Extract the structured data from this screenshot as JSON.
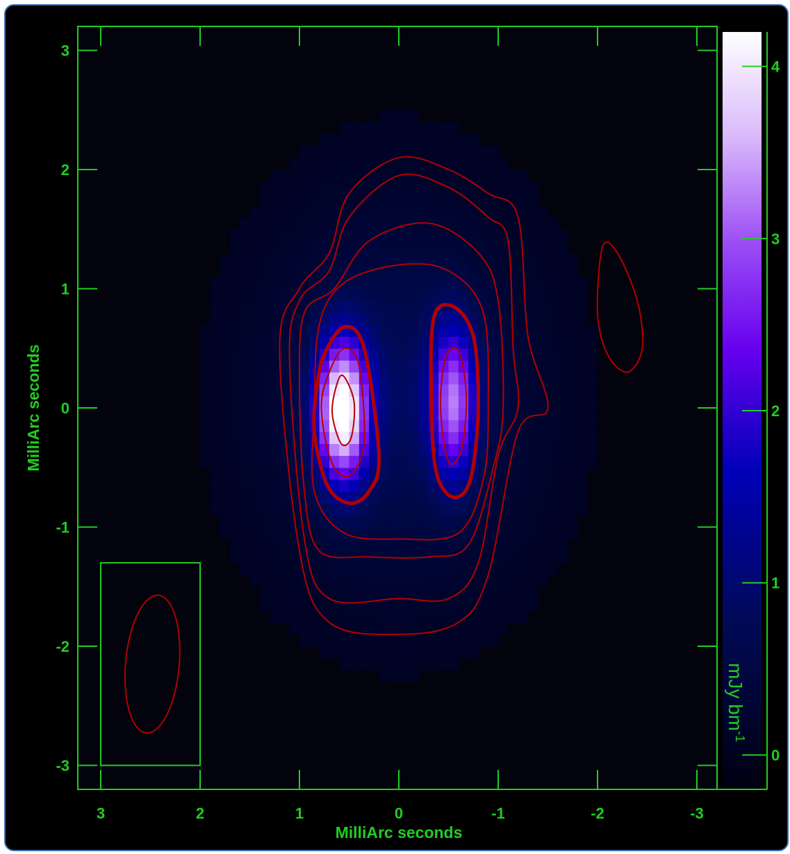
{
  "chart_data": {
    "type": "heatmap",
    "title": "",
    "xlabel": "MilliArc seconds",
    "ylabel": "MilliArc seconds",
    "xlim": [
      3.2,
      -3.4
    ],
    "ylim": [
      -3.2,
      3.2
    ],
    "x_reversed": true,
    "x_ticks": [
      3,
      2,
      1,
      0,
      -1,
      -2,
      -3
    ],
    "x_tick_labels": [
      "3",
      "2",
      "1",
      "0",
      "-1",
      "-2",
      "-3"
    ],
    "y_ticks": [
      3,
      2,
      1,
      0,
      -1,
      -2,
      -3
    ],
    "y_tick_labels": [
      "3",
      "2",
      "1",
      "0",
      "-1",
      "-2",
      "-3"
    ],
    "grid": false,
    "colorbar": {
      "label_main": "mJy bm",
      "label_sup": "-1",
      "range": [
        -0.2,
        4.2
      ],
      "ticks": [
        0,
        1,
        2,
        3,
        4
      ],
      "tick_labels": [
        "0",
        "1",
        "2",
        "3",
        "4"
      ],
      "placement": "right"
    },
    "intensity_components": [
      {
        "x": 0.57,
        "y": -0.02,
        "sigma_x": 0.19,
        "sigma_y": 0.42,
        "peak": 4.0
      },
      {
        "x": -0.55,
        "y": 0.05,
        "sigma_x": 0.17,
        "sigma_y": 0.45,
        "peak": 2.6
      },
      {
        "x": 0.0,
        "y": 0.1,
        "sigma_x": 0.9,
        "sigma_y": 1.05,
        "peak": 0.8
      }
    ],
    "contours": [
      {
        "level": "outer",
        "weight": "thin",
        "points": [
          [
            1.0,
            1.0
          ],
          [
            0.7,
            1.3
          ],
          [
            0.5,
            1.8
          ],
          [
            0.0,
            2.1
          ],
          [
            -0.5,
            2.0
          ],
          [
            -0.9,
            1.8
          ],
          [
            -1.2,
            1.6
          ],
          [
            -1.3,
            0.6
          ],
          [
            -1.5,
            0.0
          ],
          [
            -1.2,
            -0.2
          ],
          [
            -0.9,
            -1.4
          ],
          [
            -0.6,
            -1.8
          ],
          [
            0.0,
            -1.9
          ],
          [
            0.7,
            -1.8
          ],
          [
            1.0,
            -1.2
          ],
          [
            1.2,
            0.5
          ]
        ]
      },
      {
        "level": "2",
        "weight": "thin",
        "points": [
          [
            1.0,
            0.9
          ],
          [
            0.7,
            1.15
          ],
          [
            0.5,
            1.6
          ],
          [
            0.0,
            1.95
          ],
          [
            -0.5,
            1.85
          ],
          [
            -0.9,
            1.6
          ],
          [
            -1.1,
            1.4
          ],
          [
            -1.15,
            0.5
          ],
          [
            -1.2,
            0.0
          ],
          [
            -1.0,
            -0.4
          ],
          [
            -0.8,
            -1.3
          ],
          [
            -0.5,
            -1.6
          ],
          [
            0.0,
            -1.6
          ],
          [
            0.7,
            -1.6
          ],
          [
            0.95,
            -1.1
          ],
          [
            1.1,
            0.4
          ]
        ]
      },
      {
        "level": "3",
        "weight": "thin",
        "points": [
          [
            0.95,
            0.8
          ],
          [
            0.65,
            1.0
          ],
          [
            0.3,
            1.4
          ],
          [
            -0.3,
            1.55
          ],
          [
            -0.8,
            1.3
          ],
          [
            -1.0,
            0.9
          ],
          [
            -1.05,
            0.0
          ],
          [
            -0.95,
            -0.5
          ],
          [
            -0.7,
            -1.15
          ],
          [
            -0.3,
            -1.25
          ],
          [
            0.3,
            -1.25
          ],
          [
            0.8,
            -1.2
          ],
          [
            0.95,
            -0.7
          ],
          [
            1.0,
            0.2
          ]
        ]
      },
      {
        "level": "4",
        "weight": "thin",
        "points": [
          [
            0.8,
            0.7
          ],
          [
            0.55,
            1.05
          ],
          [
            0.0,
            1.2
          ],
          [
            -0.5,
            1.15
          ],
          [
            -0.85,
            0.8
          ],
          [
            -0.9,
            0.0
          ],
          [
            -0.85,
            -0.6
          ],
          [
            -0.6,
            -1.05
          ],
          [
            0.0,
            -1.1
          ],
          [
            0.55,
            -1.05
          ],
          [
            0.85,
            -0.7
          ],
          [
            0.85,
            0.0
          ]
        ]
      },
      {
        "level": "5-left",
        "weight": "thick",
        "points": [
          [
            0.75,
            0.45
          ],
          [
            0.55,
            0.68
          ],
          [
            0.35,
            0.5
          ],
          [
            0.2,
            -0.4
          ],
          [
            0.3,
            -0.7
          ],
          [
            0.5,
            -0.8
          ],
          [
            0.72,
            -0.65
          ],
          [
            0.85,
            -0.2
          ],
          [
            0.82,
            0.2
          ]
        ]
      },
      {
        "level": "5-right",
        "weight": "thick",
        "points": [
          [
            -0.35,
            0.75
          ],
          [
            -0.55,
            0.85
          ],
          [
            -0.75,
            0.6
          ],
          [
            -0.8,
            0.0
          ],
          [
            -0.72,
            -0.6
          ],
          [
            -0.55,
            -0.75
          ],
          [
            -0.38,
            -0.55
          ],
          [
            -0.33,
            0.0
          ]
        ]
      },
      {
        "level": "6-left",
        "weight": "thin",
        "points": [
          [
            0.7,
            0.3
          ],
          [
            0.55,
            0.5
          ],
          [
            0.4,
            0.35
          ],
          [
            0.35,
            -0.3
          ],
          [
            0.5,
            -0.57
          ],
          [
            0.68,
            -0.45
          ],
          [
            0.78,
            0.0
          ]
        ]
      },
      {
        "level": "6-right",
        "weight": "thin",
        "points": [
          [
            -0.47,
            0.42
          ],
          [
            -0.6,
            0.48
          ],
          [
            -0.68,
            0.1
          ],
          [
            -0.63,
            -0.35
          ],
          [
            -0.5,
            -0.45
          ],
          [
            -0.42,
            0.0
          ]
        ]
      },
      {
        "level": "7-left",
        "weight": "thin",
        "points": [
          [
            0.63,
            0.18
          ],
          [
            0.56,
            0.27
          ],
          [
            0.45,
            0.05
          ],
          [
            0.48,
            -0.25
          ],
          [
            0.58,
            -0.3
          ],
          [
            0.67,
            -0.05
          ]
        ]
      },
      {
        "level": "detached",
        "weight": "thin",
        "points": [
          [
            -2.05,
            1.35
          ],
          [
            -2.2,
            1.3
          ],
          [
            -2.4,
            0.9
          ],
          [
            -2.45,
            0.5
          ],
          [
            -2.3,
            0.3
          ],
          [
            -2.1,
            0.45
          ],
          [
            -2.0,
            0.8
          ]
        ]
      }
    ],
    "beam": {
      "box_x": [
        3.0,
        2.0
      ],
      "box_y": [
        -3.0,
        -1.3
      ],
      "center": [
        2.48,
        -2.15
      ],
      "major": 0.58,
      "minor": 0.27,
      "pa_deg": 5
    },
    "colors": {
      "axes": "#22cc22",
      "contour": "#b30000",
      "background": "#000000"
    }
  }
}
